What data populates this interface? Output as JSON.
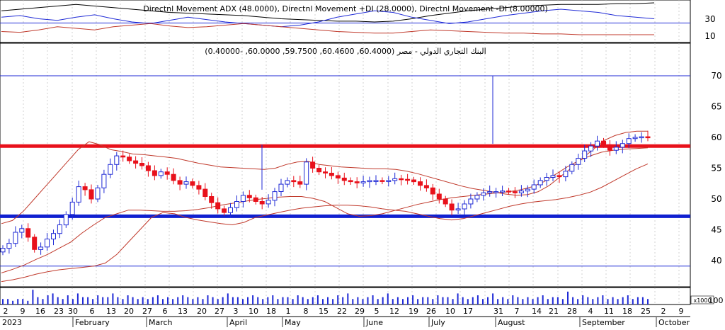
{
  "chart_data": {
    "type": "candlestick",
    "indicator": {
      "title": "Directnl Movement ADX (48.0000), Directnl Movement +DI (28.0000), Directnl Movement -DI (8.00000)",
      "yticks": [
        30,
        10
      ],
      "colors": {
        "adx": "#000000",
        "plus_di": "#1f2ad6",
        "minus_di": "#c0392b",
        "level": "#1f2ad6"
      },
      "level": 25,
      "ylim": [
        0,
        48
      ],
      "adx": [
        38,
        40,
        42,
        44,
        46,
        44,
        42,
        40,
        38,
        36,
        35,
        34,
        33,
        32,
        30,
        28,
        27,
        26,
        25,
        25,
        24,
        25,
        28,
        32,
        35,
        38,
        40,
        42,
        44,
        45,
        46,
        46,
        46,
        47,
        47,
        48
      ],
      "plus_di": [
        30,
        32,
        28,
        26,
        30,
        33,
        28,
        24,
        22,
        26,
        30,
        27,
        24,
        22,
        20,
        18,
        20,
        24,
        30,
        34,
        38,
        36,
        30,
        26,
        22,
        24,
        28,
        32,
        35,
        38,
        40,
        38,
        36,
        32,
        30,
        28
      ],
      "minus_di": [
        12,
        11,
        14,
        18,
        16,
        14,
        18,
        20,
        22,
        19,
        17,
        18,
        20,
        22,
        20,
        18,
        16,
        14,
        12,
        11,
        10,
        10,
        12,
        14,
        13,
        12,
        11,
        10,
        10,
        9,
        9,
        8,
        8,
        8,
        8,
        8
      ]
    },
    "price": {
      "title": "البنك التجاري الدولي - مصر (60.4000, 60.4600, 59.7500, 60.0000, -0.40000)",
      "yticks": [
        70,
        65,
        60,
        55,
        50,
        45,
        40
      ],
      "ylim": [
        36.5,
        73
      ],
      "hlines": [
        {
          "value": 58.6,
          "color": "#e8111b",
          "width": 5
        },
        {
          "value": 47.2,
          "color": "#1020d0",
          "width": 5
        },
        {
          "value": 70.0,
          "color": "#1f2ad6",
          "width": 1
        },
        {
          "value": 39.1,
          "color": "#1f2ad6",
          "width": 1
        }
      ],
      "colors": {
        "up": "#1f2ad6",
        "down": "#e8111b",
        "band": "#c0392b"
      },
      "close": [
        42.0,
        42.8,
        44.6,
        45.2,
        43.8,
        41.8,
        42.2,
        43.5,
        44.4,
        45.8,
        47.5,
        49.5,
        52.0,
        51.5,
        50.0,
        51.8,
        54.0,
        55.6,
        57.0,
        56.8,
        56.2,
        55.8,
        55.4,
        54.6,
        53.8,
        54.4,
        54.0,
        53.0,
        52.4,
        52.8,
        52.2,
        51.6,
        50.4,
        49.4,
        48.4,
        47.8,
        48.6,
        49.6,
        50.6,
        50.2,
        49.6,
        49.2,
        49.8,
        51.2,
        52.4,
        53.0,
        52.8,
        52.4,
        56.0,
        55.0,
        54.4,
        54.2,
        53.8,
        53.4,
        53.0,
        52.8,
        52.6,
        52.8,
        53.0,
        53.0,
        52.9,
        53.0,
        53.3,
        53.2,
        53.1,
        52.8,
        52.2,
        51.8,
        50.8,
        50.0,
        49.2,
        48.2,
        48.4,
        49.2,
        50.0,
        50.6,
        51.0,
        51.2,
        51.2,
        51.3,
        51.2,
        51.0,
        51.3,
        51.6,
        52.3,
        53.0,
        53.5,
        53.8,
        53.6,
        54.5,
        55.6,
        56.6,
        57.8,
        58.6,
        59.4,
        58.8,
        57.9,
        58.4,
        59.0,
        59.8,
        60.0,
        60.1,
        60.0
      ],
      "bb_upper": [
        46.0,
        46.5,
        48.0,
        50.0,
        52.0,
        54.0,
        56.0,
        58.0,
        59.3,
        58.8,
        58.0,
        57.7,
        57.3,
        57.2,
        57.0,
        56.8,
        56.6,
        56.2,
        55.8,
        55.5,
        55.2,
        55.1,
        55.0,
        54.9,
        54.8,
        55.0,
        55.6,
        56.0,
        56.1,
        55.6,
        55.4,
        55.2,
        55.1,
        55.0,
        54.9,
        54.9,
        54.8,
        54.5,
        54.1,
        53.6,
        53.1,
        52.6,
        52.1,
        51.7,
        51.4,
        51.1,
        50.8,
        50.6,
        50.7,
        51.2,
        52.2,
        53.6,
        55.0,
        56.6,
        58.0,
        59.5,
        60.3,
        60.8,
        61.0,
        61.0
      ],
      "bb_lower": [
        38.0,
        38.6,
        39.3,
        40.2,
        41.0,
        42.0,
        43.0,
        44.5,
        45.8,
        47.0,
        47.6,
        48.2,
        48.2,
        48.1,
        48.0,
        48.0,
        48.1,
        48.3,
        48.6,
        49.0,
        49.3,
        49.6,
        49.9,
        50.1,
        50.3,
        50.4,
        50.4,
        50.1,
        49.6,
        48.6,
        47.6,
        47.2,
        47.3,
        47.6,
        48.1,
        48.6,
        49.1,
        49.5,
        49.9,
        50.2,
        50.4,
        50.6,
        50.8,
        51.0,
        51.2,
        51.5,
        52.0,
        52.8,
        54.0,
        55.2,
        56.2,
        57.0,
        57.6,
        57.9,
        58.1,
        58.2,
        58.3
      ],
      "bb_bottom": [
        36.6,
        36.9,
        37.3,
        37.8,
        38.2,
        38.5,
        38.7,
        38.9,
        39.1,
        39.6,
        41.0,
        43.0,
        45.0,
        47.0,
        47.8,
        47.6,
        47.0,
        46.6,
        46.3,
        46.0,
        45.8,
        46.2,
        47.0,
        47.4,
        47.8,
        48.2,
        48.5,
        48.7,
        48.9,
        49.0,
        49.0,
        48.9,
        48.7,
        48.4,
        48.2,
        48.0,
        47.6,
        47.2,
        46.8,
        46.6,
        46.8,
        47.3,
        47.8,
        48.3,
        48.8,
        49.2,
        49.5,
        49.7,
        49.9,
        50.2,
        50.6,
        51.1,
        51.9,
        52.9,
        53.9,
        54.9,
        55.7
      ]
    },
    "volume": {
      "unit_label": "x1000",
      "ytick": "100",
      "values": [
        3,
        3,
        2,
        3,
        3,
        2,
        8,
        4,
        3,
        5,
        6,
        4,
        3,
        5,
        3,
        6,
        4,
        4,
        3,
        5,
        4,
        4,
        6,
        4,
        3,
        5,
        4,
        3,
        4,
        3,
        4,
        5,
        3,
        4,
        3,
        4,
        5,
        4,
        3,
        4,
        3,
        5,
        4,
        3,
        4,
        6,
        4,
        4,
        3,
        4,
        5,
        4,
        3,
        4,
        5,
        3,
        4,
        4,
        3,
        5,
        4,
        3,
        4,
        5,
        3,
        4,
        3,
        5,
        4,
        6,
        3,
        4,
        3,
        4,
        5,
        3,
        4,
        6,
        3,
        4,
        3,
        4,
        5,
        3,
        4,
        4,
        3,
        5,
        4,
        4,
        3,
        6,
        4,
        3,
        4,
        5,
        3,
        4,
        6,
        3,
        4,
        3,
        5,
        4,
        3,
        4,
        3,
        4,
        5,
        3,
        4,
        4,
        3,
        7,
        4,
        3,
        5,
        4,
        3,
        4,
        5,
        3,
        4,
        3,
        4,
        5,
        3,
        4,
        4,
        3
      ]
    },
    "x_day_labels": [
      "2",
      "9",
      "16",
      "23",
      "30",
      "6",
      "13",
      "20",
      "27",
      "6",
      "13",
      "20",
      "27",
      "3",
      "10",
      "18",
      "1",
      "8",
      "15",
      "22",
      "29",
      "5",
      "12",
      "19",
      "26",
      "10",
      "17",
      "31",
      "7",
      "14",
      "21",
      "28",
      "4",
      "11",
      "18",
      "25",
      "2",
      "9"
    ],
    "x_month_labels": [
      "2023",
      "February",
      "March",
      "April",
      "May",
      "June",
      "July",
      "August",
      "September",
      "October"
    ]
  }
}
